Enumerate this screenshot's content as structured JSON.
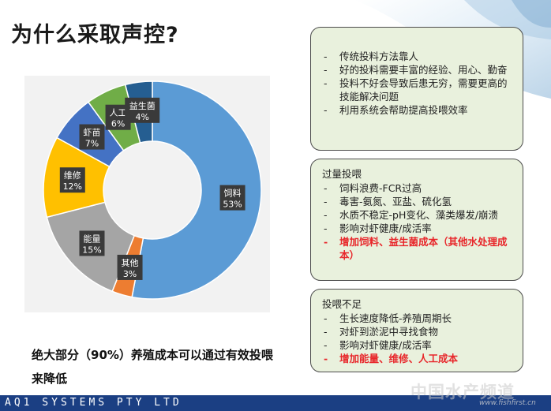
{
  "title": "为什么采取声控?",
  "chart_data": {
    "type": "pie",
    "donut": true,
    "slices": [
      {
        "label": "饲料",
        "percent": "53%",
        "value": 53,
        "color": "#5b9bd5"
      },
      {
        "label": "其他",
        "percent": "3%",
        "value": 3,
        "color": "#ed7d31"
      },
      {
        "label": "能量",
        "percent": "15%",
        "value": 15,
        "color": "#a5a5a5"
      },
      {
        "label": "维修",
        "percent": "12%",
        "value": 12,
        "color": "#ffc000"
      },
      {
        "label": "虾苗",
        "percent": "7%",
        "value": 7,
        "color": "#4472c4"
      },
      {
        "label": "人工",
        "percent": "6%",
        "value": 6,
        "color": "#70ad47"
      },
      {
        "label": "益生菌",
        "percent": "4%",
        "value": 4,
        "color": "#255e91"
      }
    ]
  },
  "boxes": {
    "box1": {
      "items": [
        {
          "text": "传统投料方法靠人",
          "highlight": false
        },
        {
          "text": "好的投料需要丰富的经验、用心、勤奋",
          "highlight": false
        },
        {
          "text": "投料不好会导致后患无穷，需要更高的技能解决问题",
          "highlight": false
        },
        {
          "text": "利用系统会帮助提高投喂效率",
          "highlight": false
        }
      ]
    },
    "box2": {
      "heading": "过量投喂",
      "items": [
        {
          "text": "饲料浪费-FCR过高",
          "highlight": false
        },
        {
          "text": "毒害-氨氮、亚盐、硫化氢",
          "highlight": false
        },
        {
          "text": "水质不稳定-pH变化、藻类爆发/崩溃",
          "highlight": false
        },
        {
          "text": "影响对虾健康/成活率",
          "highlight": false
        },
        {
          "text": "增加饲料、益生菌成本（其他水处理成本）",
          "highlight": true
        }
      ]
    },
    "box3": {
      "heading": "投喂不足",
      "items": [
        {
          "text": "生长速度降低-养殖周期长",
          "highlight": false
        },
        {
          "text": "对虾到淤泥中寻找食物",
          "highlight": false
        },
        {
          "text": "影响对虾健康/成活率",
          "highlight": false
        },
        {
          "text": "增加能量、维修、人工成本",
          "highlight": true
        }
      ]
    }
  },
  "conclusion": "绝大部分（90%）养殖成本可以通过有效投喂来降低",
  "footer": "AQ1 SYSTEMS PTY LTD",
  "watermark": "中国水产频道",
  "watermark_url": "www.fishfirst.cn"
}
